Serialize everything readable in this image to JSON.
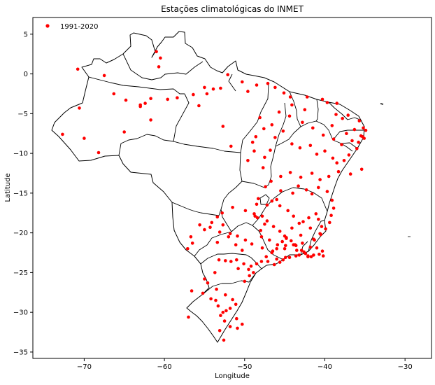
{
  "chart_data": {
    "type": "scatter",
    "title": "Estações climatológicas do INMET",
    "xlabel": "Longitude",
    "ylabel": "Latitude",
    "xlim": [
      -76.4,
      -26.7
    ],
    "ylim": [
      -35.8,
      7.1
    ],
    "xticks": [
      -70,
      -60,
      -50,
      -40,
      -30
    ],
    "xtick_labels": [
      "−70",
      "−60",
      "−50",
      "−40",
      "−30"
    ],
    "yticks": [
      5,
      0,
      -5,
      -10,
      -15,
      -20,
      -25,
      -30,
      -35
    ],
    "ytick_labels": [
      "5",
      "0",
      "−5",
      "−10",
      "−15",
      "−20",
      "−25",
      "−30",
      "−35"
    ],
    "legend_position": "top-left",
    "grid": false,
    "series": [
      {
        "name": "1991-2020",
        "color": "#ff0000",
        "x": [
          -61.0,
          -60.5,
          -60.7,
          -61.7,
          -62.4,
          -63.0,
          -64.8,
          -66.3,
          -67.5,
          -70.8,
          -72.7,
          -70.0,
          -70.6,
          -68.2,
          -65.0,
          -63.0,
          -61.7,
          -59.6,
          -58.4,
          -55.7,
          -54.7,
          -53.9,
          -53.0,
          -55.0,
          -56.4,
          -52.1,
          -50.3,
          -49.6,
          -48.5,
          -47.1,
          -46.2,
          -45.1,
          -44.3,
          -44.1,
          -42.2,
          -42.5,
          -40.3,
          -39.7,
          -38.5,
          -38.6,
          -39.1,
          -37.8,
          -37.1,
          -35.7,
          -35.2,
          -34.9,
          -35.5,
          -35.1,
          -36.3,
          -36.6,
          -37.3,
          -37.9,
          -38.9,
          -40.2,
          -41.5,
          -42.8,
          -44.4,
          -45.7,
          -46.6,
          -47.6,
          -48.1,
          -48.6,
          -49.0,
          -48.8,
          -49.6,
          -51.7,
          -52.7,
          -47.5,
          -47.7,
          -46.8,
          -46.2,
          -45.2,
          -44.1,
          -43.1,
          -41.8,
          -41.0,
          -40.0,
          -39.0,
          -38.5,
          -37.6,
          -37.0,
          -36.0,
          -35.8,
          -35.3,
          -35.4,
          -36.8,
          -38.3,
          -39.5,
          -40.6,
          -41.6,
          -43.0,
          -44.3,
          -45.5,
          -46.7,
          -47.4,
          -48.3,
          -48.5,
          -48.8,
          -48.4,
          -47.8,
          -47.2,
          -46.0,
          -45.5,
          -44.0,
          -43.3,
          -42.3,
          -41.6,
          -40.8,
          -39.7,
          -39.1,
          -38.9,
          -39.2,
          -39.4,
          -39.9,
          -40.5,
          -41.8,
          -42.7,
          -43.9,
          -44.6,
          -45.6,
          -46.6,
          -47.5,
          -48.0,
          -47.9,
          -46.9,
          -45.3,
          -44.8,
          -43.7,
          -42.8,
          -41.4,
          -41.0,
          -40.3,
          -40.2,
          -40.7,
          -41.4,
          -42.1,
          -43.6,
          -44.9,
          -46.0,
          -46.6,
          -47.8,
          -49.1,
          -49.9,
          -50.9,
          -52.0,
          -53.1,
          -54.3,
          -55.6,
          -56.5,
          -57.1,
          -56.7,
          -55.0,
          -54.1,
          -53.4,
          -52.8,
          -51.5,
          -49.9,
          -48.7,
          -47.2,
          -46.4,
          -45.6,
          -45.0,
          -44.2,
          -43.6,
          -42.9,
          -42.4,
          -41.8,
          -41.3,
          -40.6,
          -40.4,
          -40.8,
          -41.1,
          -42.0,
          -43.2,
          -44.1,
          -44.8,
          -45.9,
          -46.5,
          -47.3,
          -47.9,
          -48.5,
          -49.2,
          -50.3,
          -51.1,
          -51.8,
          -52.7,
          -53.4,
          -51.0,
          -50.1,
          -49.5,
          -48.9,
          -49.4,
          -50.0,
          -50.8,
          -51.7,
          -52.4,
          -53.2,
          -53.7,
          -55.0,
          -54.6,
          -53.5,
          -52.4,
          -51.5,
          -51.1,
          -51.8,
          -52.7,
          -53.0,
          -52.5,
          -51.8,
          -50.9,
          -50.3,
          -51.0,
          -52.3,
          -53.3,
          -54.2,
          -55.2,
          -56.6,
          -57.0,
          -53.6,
          -53.1,
          -52.6,
          -45.6,
          -44.4,
          -43.2,
          -42.1,
          -41.7,
          -46.0,
          -44.9,
          -43.5,
          -42.6,
          -43.9,
          -45.2,
          -46.3,
          -47.1,
          -45.0,
          -43.0
        ],
        "y": [
          2.8,
          2.0,
          0.9,
          -3.1,
          -3.7,
          -3.9,
          -3.3,
          -2.5,
          -0.2,
          0.6,
          -7.6,
          -8.1,
          -4.3,
          -9.9,
          -7.3,
          -4.1,
          -5.8,
          -3.2,
          -3.0,
          -4.0,
          -2.5,
          -1.9,
          -1.8,
          -1.7,
          -2.6,
          -0.1,
          -1.0,
          -2.2,
          -1.4,
          -1.2,
          -1.7,
          -2.4,
          -2.9,
          -3.9,
          -2.9,
          -4.5,
          -3.2,
          -3.6,
          -3.7,
          -5.1,
          -6.5,
          -5.6,
          -5.2,
          -5.9,
          -6.8,
          -7.1,
          -7.8,
          -8.1,
          -7.0,
          -8.4,
          -7.5,
          -8.9,
          -8.2,
          -7.7,
          -6.8,
          -6.1,
          -5.3,
          -4.8,
          -6.4,
          -6.9,
          -5.5,
          -7.9,
          -8.6,
          -9.7,
          -10.9,
          -9.1,
          -6.6,
          -10.5,
          -11.8,
          -9.6,
          -8.0,
          -7.2,
          -8.8,
          -9.3,
          -9.0,
          -10.1,
          -9.7,
          -10.6,
          -11.2,
          -10.9,
          -10.2,
          -9.4,
          -8.6,
          -7.9,
          -12.0,
          -12.6,
          -12.3,
          -12.9,
          -13.3,
          -12.5,
          -13.0,
          -12.4,
          -12.9,
          -13.5,
          -14.2,
          -15.7,
          -16.4,
          -17.6,
          -18.1,
          -17.9,
          -16.5,
          -15.8,
          -14.7,
          -15.0,
          -14.1,
          -14.6,
          -15.1,
          -14.3,
          -14.8,
          -15.9,
          -16.9,
          -17.8,
          -18.7,
          -19.5,
          -20.2,
          -19.4,
          -18.6,
          -17.9,
          -17.2,
          -16.6,
          -16.0,
          -18.9,
          -19.7,
          -20.5,
          -20.9,
          -21.1,
          -20.6,
          -21.5,
          -21.3,
          -20.8,
          -21.9,
          -22.3,
          -22.9,
          -22.7,
          -22.8,
          -23.0,
          -22.9,
          -23.1,
          -23.3,
          -22.5,
          -21.9,
          -21.4,
          -20.9,
          -20.4,
          -20.5,
          -19.9,
          -19.3,
          -19.0,
          -21.3,
          -22.0,
          -20.5,
          -19.6,
          -18.7,
          -18.0,
          -17.5,
          -16.8,
          -17.2,
          -17.9,
          -18.5,
          -19.2,
          -19.8,
          -20.4,
          -21.0,
          -21.6,
          -22.2,
          -22.6,
          -21.8,
          -20.9,
          -20.1,
          -19.2,
          -18.3,
          -17.6,
          -18.1,
          -18.8,
          -19.4,
          -20.7,
          -21.5,
          -22.3,
          -23.0,
          -23.6,
          -23.9,
          -24.2,
          -22.2,
          -21.5,
          -20.1,
          -19.0,
          -21.2,
          -23.4,
          -23.9,
          -24.6,
          -25.0,
          -25.4,
          -26.1,
          -24.5,
          -23.6,
          -23.5,
          -23.4,
          -25.0,
          -25.8,
          -26.3,
          -27.1,
          -27.8,
          -28.4,
          -29.0,
          -29.5,
          -30.0,
          -30.4,
          -31.1,
          -31.8,
          -32.0,
          -31.5,
          -30.8,
          -29.8,
          -29.2,
          -28.3,
          -27.6,
          -27.3,
          -30.6,
          -28.5,
          -32.3,
          -33.5,
          -23.7,
          -23.1,
          -22.8,
          -22.9,
          -23.0,
          -22.0,
          -21.6,
          -22.2,
          -22.4,
          -21.5,
          -23.4,
          -24.0,
          -23.6,
          -22.0,
          -20.3
        ]
      }
    ]
  }
}
